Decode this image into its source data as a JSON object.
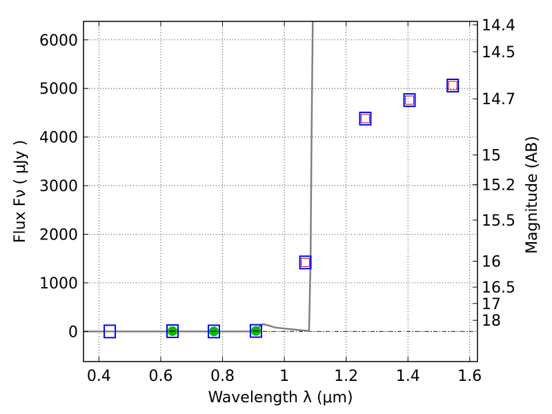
{
  "chart_data": {
    "type": "scatter",
    "xlabel": "Wavelength  λ (μm)",
    "ylabel": "Flux  Fν  ( μJy )",
    "y2label": "Magnitude (AB)",
    "xlim": [
      0.35,
      1.625
    ],
    "ylim": [
      -620,
      6380
    ],
    "grid": true,
    "x_ticks": [
      {
        "value": 0.4,
        "label": "0.4"
      },
      {
        "value": 0.6,
        "label": "0.6"
      },
      {
        "value": 0.8,
        "label": "0.8"
      },
      {
        "value": 1.0,
        "label": "1"
      },
      {
        "value": 1.2,
        "label": "1.2"
      },
      {
        "value": 1.4,
        "label": "1.4"
      },
      {
        "value": 1.6,
        "label": "1.6"
      }
    ],
    "y_ticks": [
      {
        "value": 0,
        "label": "0"
      },
      {
        "value": 1000,
        "label": "1000"
      },
      {
        "value": 2000,
        "label": "2000"
      },
      {
        "value": 3000,
        "label": "3000"
      },
      {
        "value": 4000,
        "label": "4000"
      },
      {
        "value": 5000,
        "label": "5000"
      },
      {
        "value": 6000,
        "label": "6000"
      }
    ],
    "y2_ticks": [
      {
        "value": 14.4,
        "label": "14.4"
      },
      {
        "value": 14.5,
        "label": "14.5"
      },
      {
        "value": 14.7,
        "label": "14.7"
      },
      {
        "value": 15,
        "label": "15"
      },
      {
        "value": 15.2,
        "label": "15.2"
      },
      {
        "value": 15.5,
        "label": "15.5"
      },
      {
        "value": 16,
        "label": "16"
      },
      {
        "value": 16.5,
        "label": "16.5"
      },
      {
        "value": 17,
        "label": "17"
      },
      {
        "value": 18,
        "label": "18"
      }
    ],
    "series": [
      {
        "marker": "open-square",
        "color": "#0000ff",
        "x": [
          0.435,
          0.638,
          0.772,
          0.908,
          1.068,
          1.262,
          1.405,
          1.545
        ],
        "y": [
          0,
          5,
          0,
          10,
          1420,
          4380,
          4760,
          5060
        ]
      },
      {
        "marker": "small-open-square",
        "color": "#cc0000",
        "x": [
          1.068,
          1.262,
          1.405,
          1.545
        ],
        "y": [
          1420,
          4380,
          4760,
          5060
        ]
      },
      {
        "marker": "filled-circle",
        "color": "#00bb00",
        "x": [
          0.638,
          0.772,
          0.908
        ],
        "y": [
          5,
          0,
          10
        ]
      },
      {
        "marker": "line",
        "color": "#808080",
        "x": [
          0.35,
          0.9,
          0.93,
          0.95,
          0.97,
          1.0,
          1.03,
          1.06,
          1.08,
          1.085,
          1.088,
          1.092
        ],
        "y": [
          0,
          0,
          150,
          120,
          80,
          60,
          40,
          20,
          10,
          1500,
          4000,
          6380
        ]
      }
    ]
  }
}
